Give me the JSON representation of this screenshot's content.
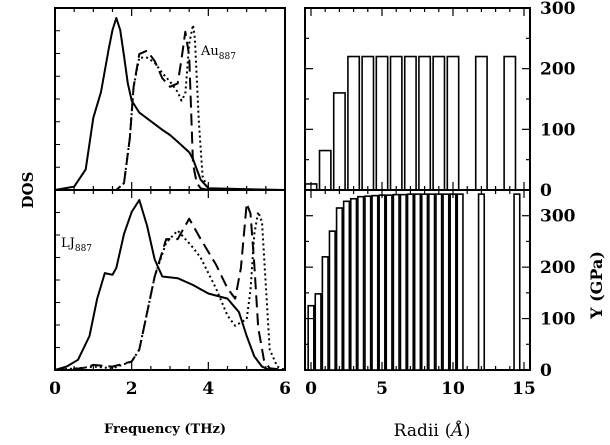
{
  "chart_data": [
    {
      "type": "line",
      "panel": "top-left",
      "annotation": {
        "base": "Au",
        "sub": "887"
      },
      "xlim": [
        0,
        6
      ],
      "series": [
        {
          "style": "solid",
          "x": [
            0,
            0.5,
            0.8,
            1.0,
            1.2,
            1.4,
            1.5,
            1.6,
            1.7,
            1.8,
            1.9,
            2.0,
            2.2,
            2.5,
            2.8,
            3.0,
            3.2,
            3.4,
            3.5,
            3.6,
            3.7,
            3.8,
            4.0,
            6.0
          ],
          "y": [
            0,
            0.02,
            0.12,
            0.42,
            0.57,
            0.82,
            0.93,
            1.0,
            0.93,
            0.78,
            0.62,
            0.52,
            0.45,
            0.4,
            0.35,
            0.32,
            0.28,
            0.24,
            0.22,
            0.18,
            0.12,
            0.06,
            0.01,
            0
          ]
        },
        {
          "style": "dashed",
          "x": [
            0,
            1.6,
            1.8,
            1.95,
            2.05,
            2.2,
            2.4,
            2.6,
            2.8,
            3.0,
            3.2,
            3.3,
            3.4,
            3.5,
            3.6,
            3.7,
            3.8,
            4.0,
            6.0
          ],
          "y": [
            0,
            0,
            0.04,
            0.3,
            0.6,
            0.79,
            0.81,
            0.75,
            0.65,
            0.6,
            0.62,
            0.76,
            0.92,
            0.78,
            0.15,
            0.04,
            0.01,
            0,
            0
          ]
        },
        {
          "style": "dotted",
          "x": [
            0,
            1.6,
            1.8,
            1.95,
            2.05,
            2.2,
            2.4,
            2.6,
            2.8,
            3.0,
            3.2,
            3.3,
            3.4,
            3.5,
            3.6,
            3.65,
            3.75,
            3.85,
            4.0,
            6.0
          ],
          "y": [
            0,
            0,
            0.04,
            0.3,
            0.6,
            0.77,
            0.77,
            0.74,
            0.68,
            0.63,
            0.57,
            0.52,
            0.56,
            0.85,
            0.96,
            0.88,
            0.4,
            0.08,
            0,
            0
          ]
        }
      ]
    },
    {
      "type": "line",
      "panel": "bottom-left",
      "annotation": {
        "base": "LJ",
        "sub": "887"
      },
      "xlim": [
        0,
        6
      ],
      "xlabel": "Frequency (THz)",
      "xticks": [
        0,
        2,
        4,
        6
      ],
      "series": [
        {
          "style": "solid",
          "x": [
            0,
            0.3,
            0.6,
            0.9,
            1.1,
            1.3,
            1.5,
            1.6,
            1.8,
            2.0,
            2.2,
            2.4,
            2.6,
            2.8,
            3.2,
            3.6,
            4.0,
            4.5,
            4.8,
            5.0,
            5.2,
            5.4,
            5.6,
            6.0
          ],
          "y": [
            0,
            0.02,
            0.06,
            0.2,
            0.42,
            0.57,
            0.56,
            0.6,
            0.8,
            0.93,
            1.0,
            0.85,
            0.65,
            0.55,
            0.54,
            0.5,
            0.45,
            0.42,
            0.34,
            0.2,
            0.08,
            0.02,
            0,
            0
          ]
        },
        {
          "style": "dashed",
          "x": [
            0,
            0.7,
            1.0,
            1.5,
            2.0,
            2.2,
            2.6,
            2.9,
            3.2,
            3.5,
            3.8,
            4.2,
            4.5,
            4.7,
            4.85,
            5.0,
            5.1,
            5.2,
            5.3,
            5.45,
            5.6,
            6.0
          ],
          "y": [
            0,
            0.01,
            0.03,
            0.02,
            0.05,
            0.12,
            0.55,
            0.77,
            0.77,
            0.89,
            0.77,
            0.62,
            0.48,
            0.42,
            0.6,
            0.98,
            0.92,
            0.62,
            0.25,
            0.06,
            0.01,
            0
          ]
        },
        {
          "style": "dotted",
          "x": [
            0,
            0.6,
            1.0,
            1.5,
            2.0,
            2.2,
            2.6,
            2.9,
            3.2,
            3.6,
            3.8,
            4.2,
            4.5,
            4.7,
            5.0,
            5.1,
            5.2,
            5.3,
            5.4,
            5.5,
            5.6,
            5.8,
            6.0
          ],
          "y": [
            0,
            0.01,
            0.02,
            0.01,
            0.05,
            0.12,
            0.55,
            0.75,
            0.82,
            0.72,
            0.66,
            0.48,
            0.32,
            0.26,
            0.3,
            0.47,
            0.8,
            0.93,
            0.87,
            0.5,
            0.12,
            0.02,
            0
          ]
        }
      ]
    },
    {
      "type": "bar",
      "panel": "top-right",
      "xlim": [
        0,
        15
      ],
      "ylim": [
        0,
        300
      ],
      "yticks": [
        0,
        100,
        200,
        300
      ],
      "x": [
        0,
        1,
        2,
        3,
        4,
        5,
        6,
        7,
        8,
        9,
        10,
        12,
        14
      ],
      "values": [
        10,
        65,
        160,
        220,
        220,
        220,
        220,
        220,
        220,
        220,
        220,
        220,
        220
      ]
    },
    {
      "type": "bar",
      "panel": "bottom-right",
      "xlim": [
        0,
        15
      ],
      "ylim": [
        0,
        350
      ],
      "yticks": [
        0,
        100,
        200,
        300
      ],
      "xticks": [
        0,
        5,
        10,
        15
      ],
      "xlabel": {
        "prefix": "Radii",
        "unit": "Å"
      },
      "ylabel": "Y (GPa)",
      "x": [
        0,
        0.5,
        1,
        1.5,
        2,
        2.5,
        3,
        3.5,
        4,
        4.5,
        5,
        5.5,
        6,
        6.5,
        7,
        7.5,
        8,
        8.5,
        9,
        9.5,
        10,
        10.5,
        12,
        14.5
      ],
      "values": [
        125,
        148,
        220,
        270,
        315,
        328,
        333,
        337,
        338,
        339,
        340,
        340,
        341,
        341,
        342,
        342,
        342,
        342,
        342,
        342,
        342,
        342,
        342,
        342
      ]
    }
  ],
  "left_ylabel": "DOS"
}
